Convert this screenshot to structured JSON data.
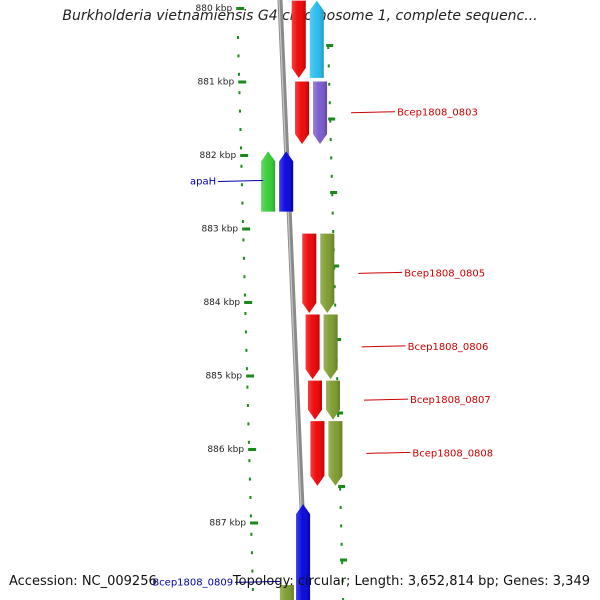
{
  "title": "Burkholderia vietnamiensis G4 chromosome 1, complete sequenc...",
  "footer": {
    "accession": "Accession: NC_009256",
    "topology": "Topology: circular; Length: 3,652,814 bp; Genes: 3,349"
  },
  "colors": {
    "tick": "#1a8a1a",
    "backbone": "#888888",
    "forward_label": "#cc0000",
    "reverse_label": "#0000aa",
    "cds_red": "#ee0000",
    "cds_green": "#33cc33",
    "cds_blue": "#0000dd",
    "cds_cyan": "#22bbee",
    "cds_purple": "#7755cc",
    "cds_olive": "#7a9a2a"
  },
  "ticks": {
    "unit": "kbp",
    "labels": [
      "880 kbp",
      "881 kbp",
      "882 kbp",
      "883 kbp",
      "884 kbp",
      "885 kbp",
      "886 kbp",
      "887 kbp"
    ]
  },
  "genes": [
    {
      "label": "",
      "strand": "reverse",
      "color": "cds_cyan",
      "start_kbp": 879.9,
      "end_kbp": 880.95,
      "track": "outer"
    },
    {
      "label": "",
      "strand": "forward",
      "color": "cds_red",
      "start_kbp": 879.9,
      "end_kbp": 880.95,
      "track": "inner"
    },
    {
      "label": "Bcep1808_0803",
      "strand": "forward",
      "color": "cds_purple",
      "start_kbp": 881.0,
      "end_kbp": 881.85,
      "track": "outer"
    },
    {
      "label": "",
      "strand": "forward",
      "color": "cds_red",
      "start_kbp": 881.0,
      "end_kbp": 881.85,
      "track": "inner"
    },
    {
      "label": "apaH",
      "strand": "reverse",
      "color": "cds_blue",
      "start_kbp": 881.95,
      "end_kbp": 882.77,
      "track": "inner-left"
    },
    {
      "label": "",
      "strand": "reverse",
      "color": "cds_green",
      "start_kbp": 881.95,
      "end_kbp": 882.77,
      "track": "outer-left"
    },
    {
      "label": "Bcep1808_0805",
      "strand": "forward",
      "color": "cds_olive",
      "start_kbp": 883.07,
      "end_kbp": 884.15,
      "track": "outer"
    },
    {
      "label": "",
      "strand": "forward",
      "color": "cds_red",
      "start_kbp": 883.07,
      "end_kbp": 884.15,
      "track": "inner"
    },
    {
      "label": "Bcep1808_0806",
      "strand": "forward",
      "color": "cds_olive",
      "start_kbp": 884.17,
      "end_kbp": 885.05,
      "track": "outer"
    },
    {
      "label": "",
      "strand": "forward",
      "color": "cds_red",
      "start_kbp": 884.17,
      "end_kbp": 885.05,
      "track": "inner"
    },
    {
      "label": "Bcep1808_0807",
      "strand": "forward",
      "color": "cds_olive",
      "start_kbp": 885.07,
      "end_kbp": 885.6,
      "track": "outer"
    },
    {
      "label": "",
      "strand": "forward",
      "color": "cds_red",
      "start_kbp": 885.07,
      "end_kbp": 885.6,
      "track": "inner"
    },
    {
      "label": "Bcep1808_0808",
      "strand": "forward",
      "color": "cds_olive",
      "start_kbp": 885.62,
      "end_kbp": 886.5,
      "track": "outer"
    },
    {
      "label": "",
      "strand": "forward",
      "color": "cds_red",
      "start_kbp": 885.62,
      "end_kbp": 886.5,
      "track": "inner"
    },
    {
      "label": "Bcep1808_0809",
      "strand": "reverse",
      "color": "cds_blue",
      "start_kbp": 886.75,
      "end_kbp": 888.2,
      "track": "inner-left"
    },
    {
      "label": "",
      "strand": "forward",
      "color": "cds_olive",
      "start_kbp": 887.85,
      "end_kbp": 888.2,
      "track": "outer-left"
    }
  ]
}
